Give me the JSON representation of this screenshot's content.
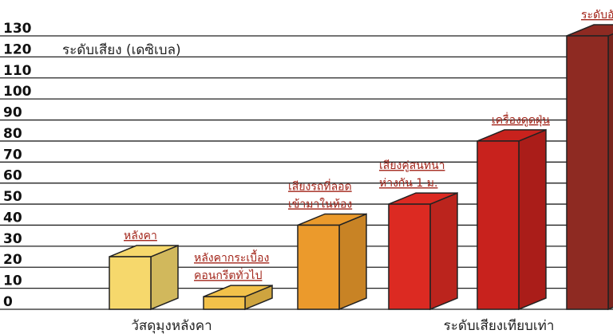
{
  "chart_data": {
    "type": "bar3d",
    "ylabel": "ระดับเสียง (เดซิเบล)",
    "categories": [
      [
        "หลังคา"
      ],
      [
        "หลังคากระเบื้อง",
        "คอนกรีตทั่วไป"
      ],
      [
        "เสียงรถที่ลอด",
        "เข้ามาในห้อง"
      ],
      [
        "เสียงคู่สนทนา",
        "ห่างกัน 1 ม."
      ],
      [
        "เครื่องดูดฝุ่น"
      ],
      [
        "ระดับอันต"
      ]
    ],
    "values": [
      25,
      6,
      40,
      50,
      80,
      130
    ],
    "colors": [
      "#f6d86c",
      "#f2c14a",
      "#eb9a2c",
      "#dc2a22",
      "#c8221d",
      "#8e2a22"
    ],
    "groups": [
      "วัสดุมุงหลังคา",
      "ระดับเสียงเทียบเท่า"
    ],
    "ylim": [
      0,
      130
    ],
    "yticks": [
      0,
      10,
      20,
      30,
      40,
      50,
      60,
      70,
      80,
      90,
      100,
      110,
      120,
      130
    ],
    "grid": true
  }
}
